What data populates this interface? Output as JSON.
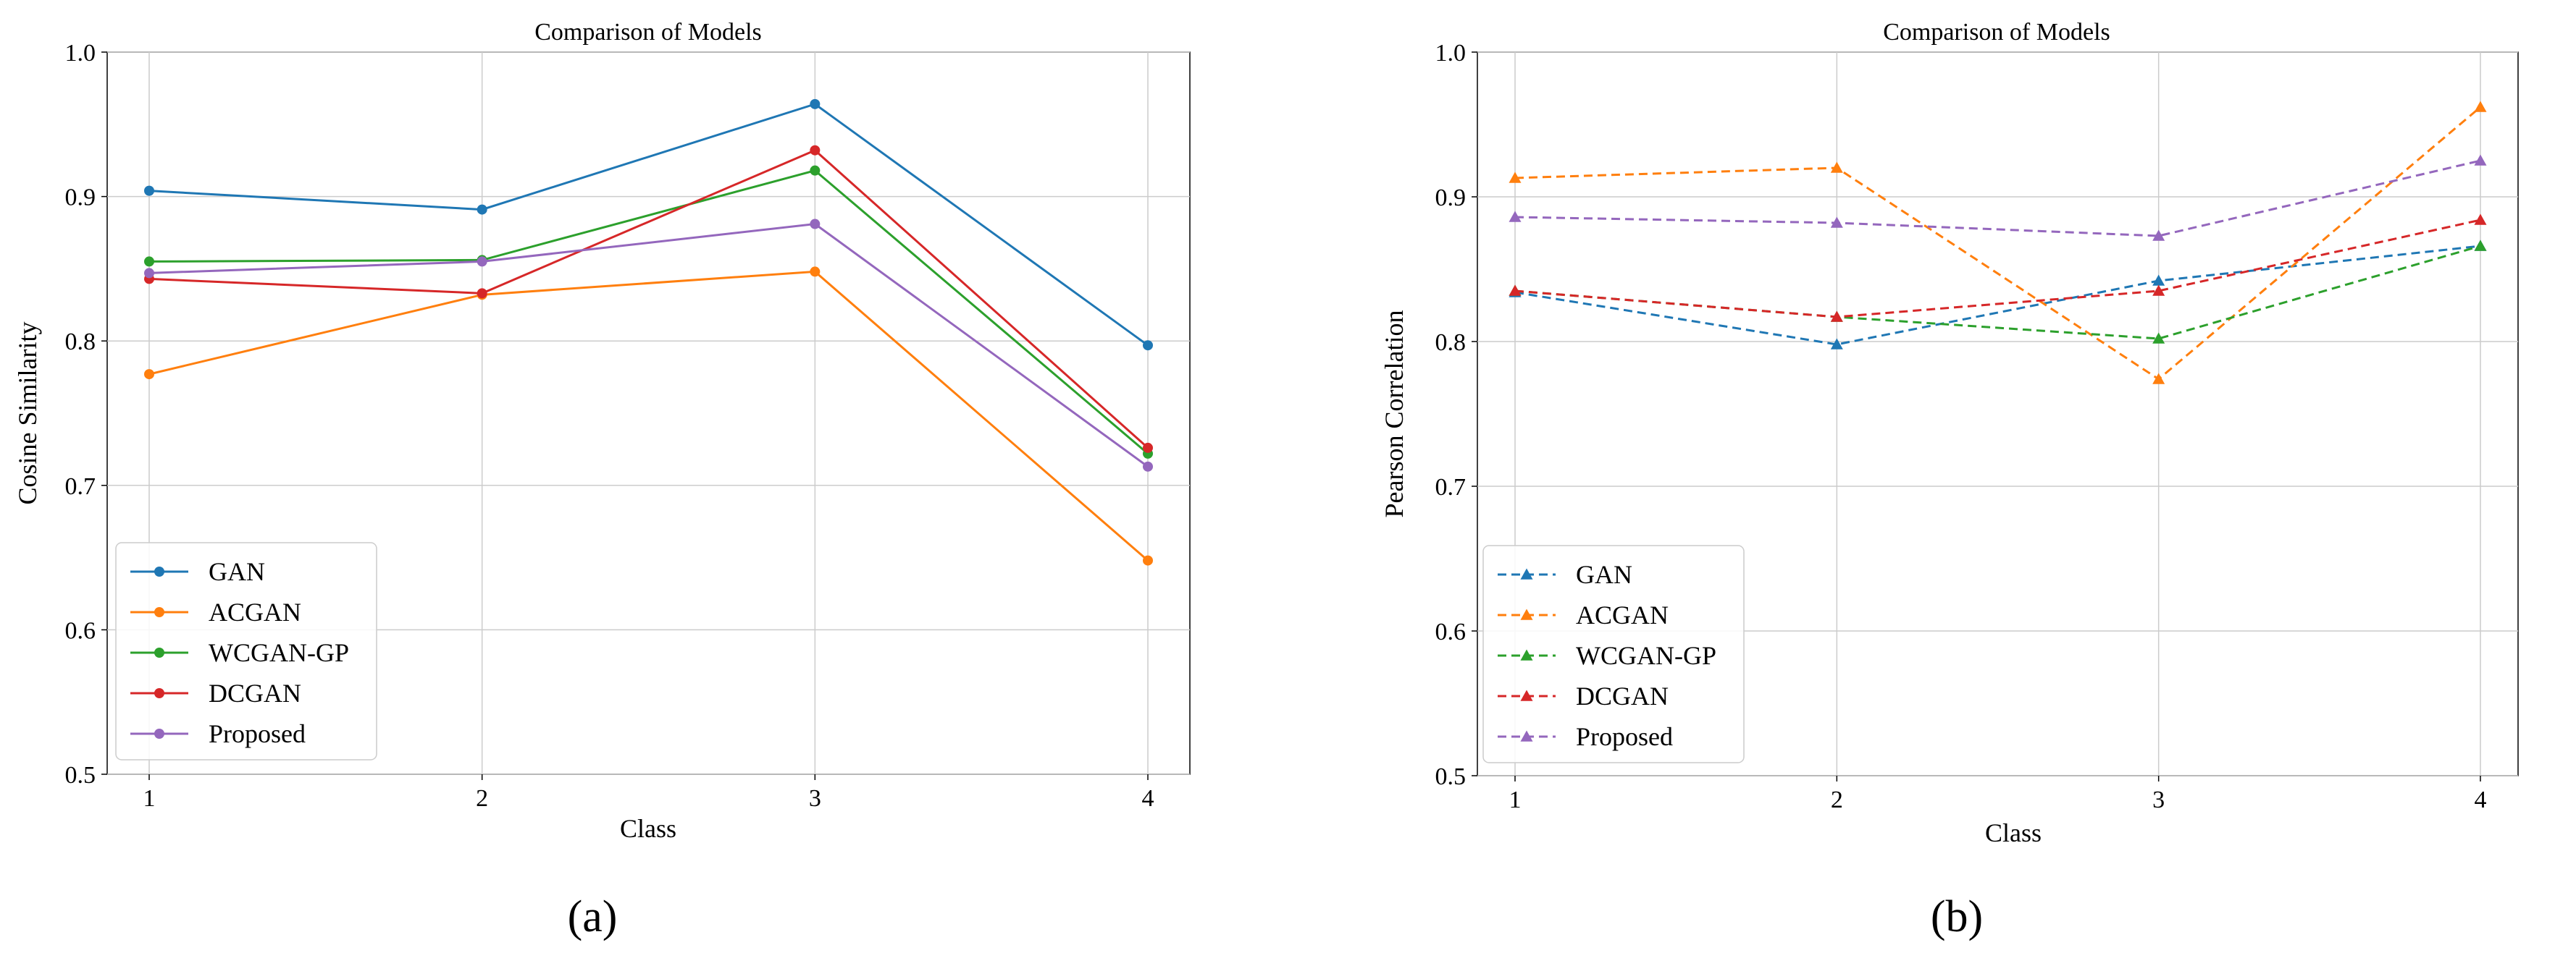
{
  "colors": {
    "GAN": "#1f77b4",
    "ACGAN": "#ff7f0e",
    "WCGAN-GP": "#2ca02c",
    "DCGAN": "#d62728",
    "Proposed": "#9467bd",
    "grid": "#cccccc",
    "axis": "#000000"
  },
  "chart_data": [
    {
      "type": "line",
      "title": "Comparison of Models",
      "xlabel": "Class",
      "ylabel": "Cosine Similarity",
      "x": [
        1,
        2,
        3,
        4
      ],
      "xticks": [
        "1",
        "2",
        "3",
        "4"
      ],
      "ylim": [
        0.5,
        1.0
      ],
      "yticks": [
        "0.5",
        "0.6",
        "0.7",
        "0.8",
        "0.9",
        "1.0"
      ],
      "grid": true,
      "marker": "circle",
      "linestyle": "solid",
      "legend_position": "lower-left",
      "caption": "(a)",
      "series": [
        {
          "name": "GAN",
          "values": [
            0.904,
            0.891,
            0.964,
            0.797
          ]
        },
        {
          "name": "ACGAN",
          "values": [
            0.777,
            0.832,
            0.848,
            0.648
          ]
        },
        {
          "name": "WCGAN-GP",
          "values": [
            0.855,
            0.856,
            0.918,
            0.722
          ]
        },
        {
          "name": "DCGAN",
          "values": [
            0.843,
            0.833,
            0.932,
            0.726
          ]
        },
        {
          "name": "Proposed",
          "values": [
            0.847,
            0.855,
            0.881,
            0.713
          ]
        }
      ]
    },
    {
      "type": "line",
      "title": "Comparison of Models",
      "xlabel": "Class",
      "ylabel": "Pearson Correlation",
      "x": [
        1,
        2,
        3,
        4
      ],
      "xticks": [
        "1",
        "2",
        "3",
        "4"
      ],
      "ylim": [
        0.5,
        1.0
      ],
      "yticks": [
        "0.5",
        "0.6",
        "0.7",
        "0.8",
        "0.9",
        "1.0"
      ],
      "grid": true,
      "marker": "triangle",
      "linestyle": "dashed",
      "legend_position": "lower-left",
      "caption": "(b)",
      "series": [
        {
          "name": "GAN",
          "values": [
            0.834,
            0.798,
            0.842,
            0.866
          ]
        },
        {
          "name": "ACGAN",
          "values": [
            0.913,
            0.92,
            0.774,
            0.962
          ]
        },
        {
          "name": "WCGAN-GP",
          "values": [
            0.835,
            0.817,
            0.802,
            0.866
          ]
        },
        {
          "name": "DCGAN",
          "values": [
            0.835,
            0.817,
            0.835,
            0.884
          ]
        },
        {
          "name": "Proposed",
          "values": [
            0.886,
            0.882,
            0.873,
            0.925
          ]
        }
      ]
    }
  ]
}
